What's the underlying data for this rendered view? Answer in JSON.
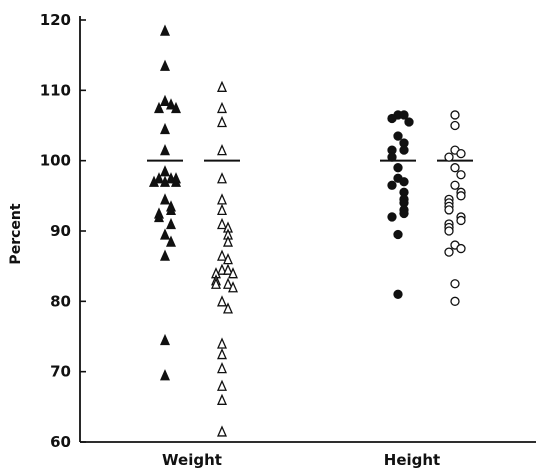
{
  "chart_data": {
    "type": "scatter",
    "title": "",
    "xlabel": "",
    "ylabel": "Percent",
    "ylim": [
      60,
      120
    ],
    "yticks": [
      60,
      70,
      80,
      90,
      100,
      110,
      120
    ],
    "categories": [
      "Weight",
      "Height"
    ],
    "grid": false,
    "legend": "none",
    "series": [
      {
        "category": "Weight",
        "marker": "triangle",
        "filled": true,
        "mean": 100,
        "values": [
          118.5,
          113.5,
          108.5,
          108,
          107.5,
          107.5,
          104.5,
          101.5,
          98.5,
          97.5,
          97.5,
          97.5,
          97,
          97,
          97,
          94.5,
          93.5,
          93,
          92.5,
          92,
          91,
          89.5,
          88.5,
          86.5,
          74.5,
          69.5
        ]
      },
      {
        "category": "Weight",
        "marker": "triangle",
        "filled": false,
        "mean": 100,
        "values": [
          110.5,
          107.5,
          105.5,
          101.5,
          97.5,
          94.5,
          93,
          91,
          90.5,
          89.5,
          88.5,
          86.5,
          86,
          84.5,
          84.5,
          84,
          84,
          83,
          82.5,
          82.5,
          82,
          80,
          79,
          74,
          72.5,
          70.5,
          68,
          66,
          61.5
        ]
      },
      {
        "category": "Height",
        "marker": "circle",
        "filled": true,
        "mean": 100,
        "values": [
          106.5,
          106.5,
          106,
          105.5,
          103.5,
          102.5,
          101.5,
          101.5,
          100.5,
          99,
          97.5,
          97,
          96.5,
          95.5,
          94.5,
          94,
          93,
          92.5,
          92,
          89.5,
          81
        ]
      },
      {
        "category": "Height",
        "marker": "circle",
        "filled": false,
        "mean": 100,
        "values": [
          106.5,
          105,
          101.5,
          101,
          100.5,
          99,
          98,
          96.5,
          95.5,
          95,
          94.5,
          94,
          93.5,
          93,
          92,
          91.5,
          91,
          90.5,
          90,
          88,
          87.5,
          87,
          82.5,
          80
        ]
      }
    ]
  }
}
